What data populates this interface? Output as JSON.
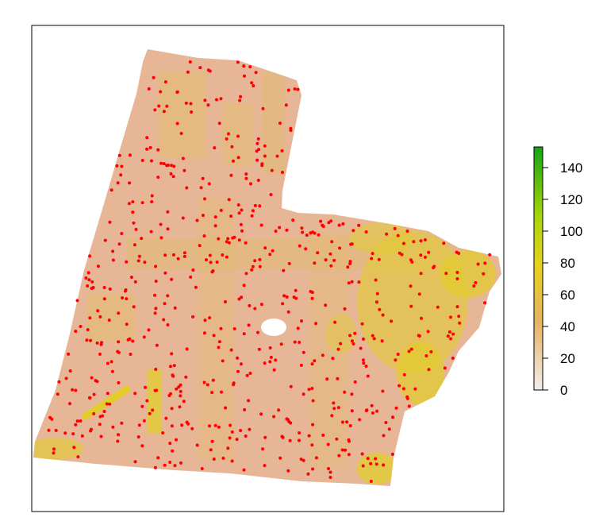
{
  "map": {
    "type": "raster-with-points",
    "fill_palette": [
      "#f2f2f2",
      "#e8c3a8",
      "#e8b08a",
      "#e6b86a",
      "#e8d21a",
      "#c8d800",
      "#7cc81c",
      "#1fa31f"
    ],
    "base_color": "#e6b696",
    "band_color": "#e2bb72",
    "hot_color": "#e2cc2c",
    "hole_color": "#ffffff",
    "point_color": "#ff0000",
    "point_count": 620,
    "grid": false
  },
  "legend": {
    "min": 0,
    "max": 153,
    "ticks": [
      "0",
      "20",
      "40",
      "60",
      "80",
      "100",
      "120",
      "140"
    ],
    "gradient_top": "#15a315",
    "gradient_mid_high": "#a6d40a",
    "gradient_mid": "#e6d21c",
    "gradient_mid_low": "#e6b264",
    "gradient_bottom": "#f2eeee"
  }
}
